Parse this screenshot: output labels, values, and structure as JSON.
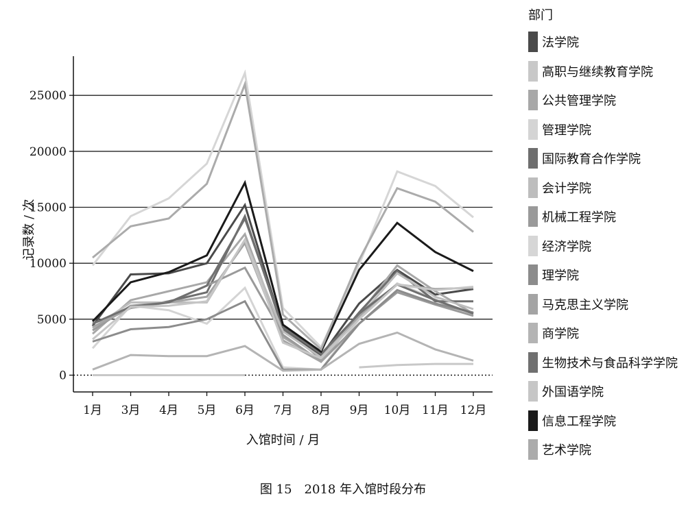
{
  "chart_data": {
    "type": "line",
    "title": "图 15　2018 年入馆时段分布",
    "xlabel": "入馆时间 / 月",
    "ylabel": "记录数 / 次",
    "categories": [
      "1月",
      "3月",
      "4月",
      "5月",
      "6月",
      "7月",
      "8月",
      "9月",
      "10月",
      "11月",
      "12月"
    ],
    "ylim": [
      -1500,
      28500
    ],
    "yticks": [
      0,
      5000,
      10000,
      15000,
      20000,
      25000
    ],
    "grid": "horizontal",
    "legend_title": "部门",
    "legend_position": "right",
    "series": [
      {
        "name": "法学院",
        "color": "#4a4a4a",
        "values": [
          4400,
          9000,
          9100,
          10000,
          15200,
          4100,
          1700,
          6400,
          9400,
          7200,
          7700
        ]
      },
      {
        "name": "高职与继续教育学院",
        "color": "#c8c8c8",
        "values": [
          0,
          0,
          0,
          0,
          0,
          null,
          null,
          700,
          900,
          1000,
          1000
        ]
      },
      {
        "name": "公共管理学院",
        "color": "#a8a8a8",
        "values": [
          3700,
          6700,
          7500,
          8300,
          12600,
          3400,
          1300,
          5400,
          9800,
          7500,
          5500
        ]
      },
      {
        "name": "管理学院",
        "color": "#d4d4d4",
        "values": [
          2400,
          6200,
          5800,
          4600,
          7800,
          700,
          500,
          5000,
          8200,
          6800,
          5300
        ]
      },
      {
        "name": "国际教育合作学院",
        "color": "#6e6e6e",
        "values": [
          4600,
          6000,
          6600,
          7400,
          14200,
          4100,
          1500,
          5600,
          9300,
          6600,
          6600
        ]
      },
      {
        "name": "会计学院",
        "color": "#bdbdbd",
        "values": [
          4200,
          6500,
          6500,
          6500,
          12100,
          3900,
          1600,
          5200,
          9100,
          7000,
          5900
        ]
      },
      {
        "name": "机械工程学院",
        "color": "#9a9a9a",
        "values": [
          4000,
          6200,
          6500,
          8000,
          9600,
          3600,
          1200,
          4600,
          7400,
          6300,
          5300
        ]
      },
      {
        "name": "经济学院",
        "color": "#d6d6d6",
        "values": [
          9800,
          14200,
          15800,
          18900,
          27000,
          6000,
          2500,
          9900,
          18200,
          16900,
          14100
        ]
      },
      {
        "name": "理学院",
        "color": "#8c8c8c",
        "values": [
          3000,
          4100,
          4300,
          5000,
          6600,
          500,
          500,
          4600,
          7600,
          6400,
          5600
        ]
      },
      {
        "name": "马克思主义学院",
        "color": "#a4a4a4",
        "values": [
          4300,
          6000,
          6500,
          7000,
          11800,
          3100,
          1200,
          5300,
          8100,
          7700,
          7800
        ]
      },
      {
        "name": "商学院",
        "color": "#b4b4b4",
        "values": [
          500,
          1800,
          1700,
          1700,
          2600,
          400,
          500,
          2800,
          3800,
          2300,
          1300
        ]
      },
      {
        "name": "生物技术与食品科学学院",
        "color": "#707070",
        "values": [
          4600,
          6100,
          6500,
          8000,
          14000,
          4300,
          1900,
          5500,
          8100,
          6700,
          5500
        ]
      },
      {
        "name": "外国语学院",
        "color": "#c6c6c6",
        "values": [
          3200,
          6100,
          6200,
          6600,
          12100,
          2900,
          1500,
          5000,
          8100,
          7600,
          7900
        ]
      },
      {
        "name": "信息工程学院",
        "color": "#1a1a1a",
        "values": [
          4800,
          8300,
          9200,
          10700,
          17200,
          4500,
          2100,
          9400,
          13600,
          11000,
          9300
        ]
      },
      {
        "name": "艺术学院",
        "color": "#ababab",
        "values": [
          10500,
          13300,
          14000,
          17100,
          26000,
          5400,
          2300,
          10300,
          16700,
          15500,
          12800
        ]
      }
    ]
  }
}
